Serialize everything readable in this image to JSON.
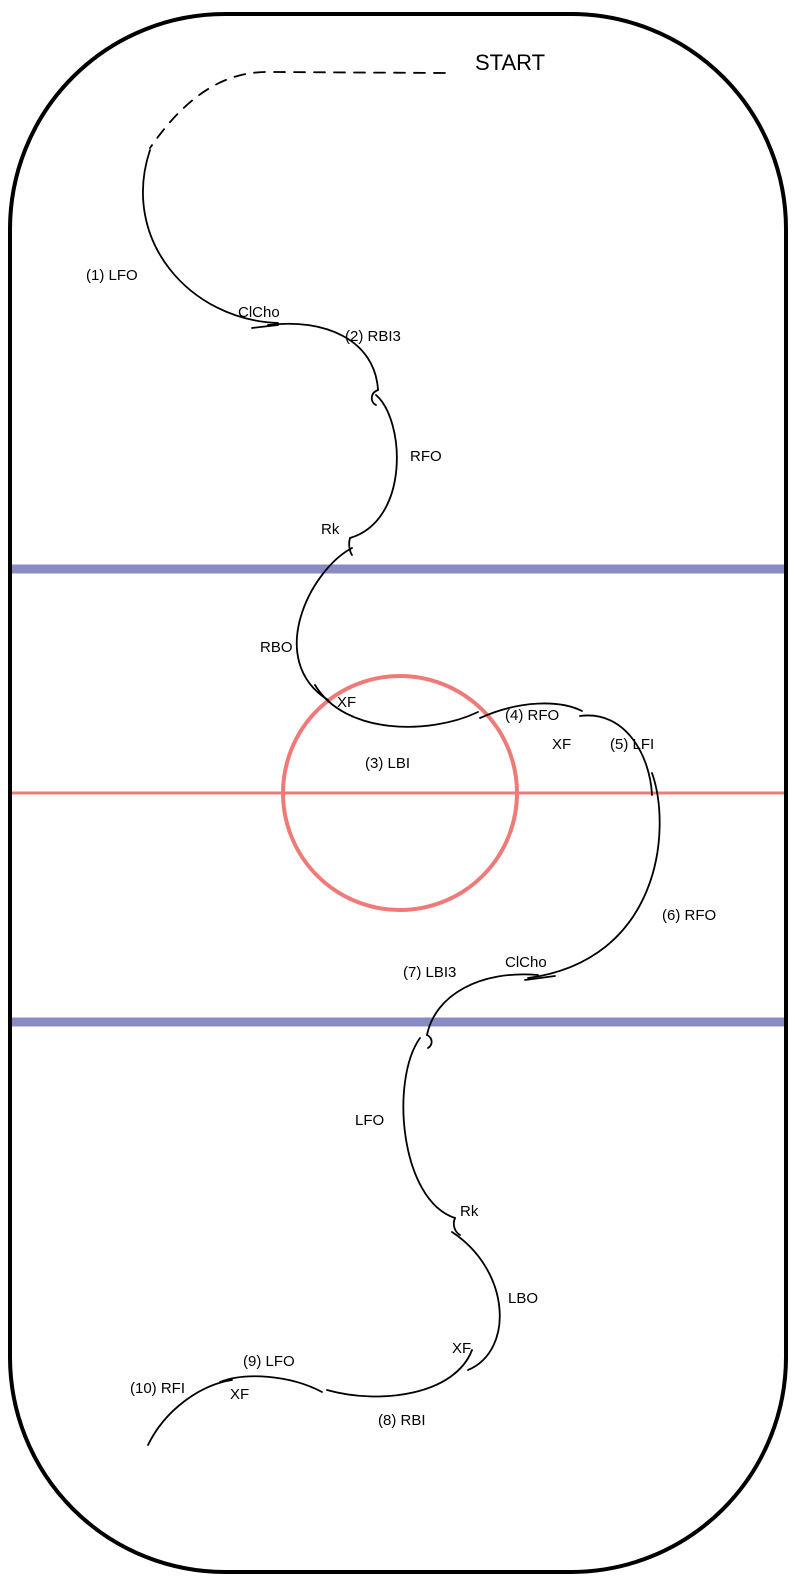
{
  "colors": {
    "rink_outline": "#000000",
    "blue_lines": "#8a8bc4",
    "red_line": "#ef7b78",
    "center_circle": "#ef7b78",
    "tracing": "#000000"
  },
  "start_label": "START",
  "elements": [
    {
      "num": "(1)",
      "edge": "LFO"
    },
    {
      "num": "(2)",
      "edge": "RBI3"
    },
    {
      "num": "(3)",
      "edge": "LBI"
    },
    {
      "num": "(4)",
      "edge": "RFO"
    },
    {
      "num": "(5)",
      "edge": "LFI"
    },
    {
      "num": "(6)",
      "edge": "RFO"
    },
    {
      "num": "(7)",
      "edge": "LBI3"
    },
    {
      "num": "(8)",
      "edge": "RBI"
    },
    {
      "num": "(9)",
      "edge": "LFO"
    },
    {
      "num": "(10)",
      "edge": "RFI"
    }
  ],
  "labels": {
    "e1": "(1) LFO",
    "e2": "(2) RBI3",
    "e3": "(3) LBI",
    "e4": "(4) RFO",
    "e5": "(5) LFI",
    "e6": "(6) RFO",
    "e7": "(7) LBI3",
    "e8": "(8) RBI",
    "e9": "(9) LFO",
    "e10": "(10) RFI",
    "clcho_1": "ClCho",
    "clcho_2": "ClCho",
    "rfo_mid": "RFO",
    "rk_1": "Rk",
    "rbo": "RBO",
    "xf_1": "XF",
    "xf_2": "XF",
    "lfo_mid": "LFO",
    "rk_2": "Rk",
    "lbo": "LBO",
    "xf_3": "XF",
    "xf_4": "XF"
  }
}
